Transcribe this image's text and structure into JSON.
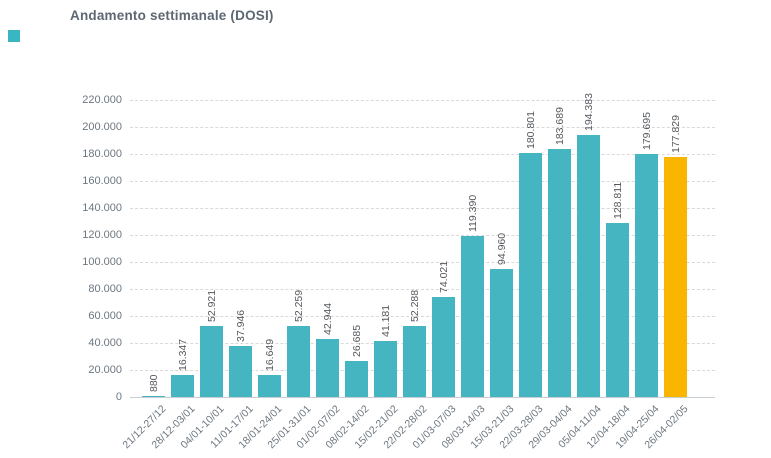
{
  "header": {
    "title": "Andamento settimanale (DOSI)",
    "accent_square_color": "#38b6c2"
  },
  "chart_data": {
    "type": "bar",
    "title": "Andamento settimanale (DOSI)",
    "categories": [
      "21/12-27/12",
      "28/12-03/01",
      "04/01-10/01",
      "11/01-17/01",
      "18/01-24/01",
      "25/01-31/01",
      "01/02-07/02",
      "08/02-14/02",
      "15/02-21/02",
      "22/02-28/02",
      "01/03-07/03",
      "08/03-14/03",
      "15/03-21/03",
      "22/03-28/03",
      "29/03-04/04",
      "05/04-11/04",
      "12/04-18/04",
      "19/04-25/04",
      "26/04-02/05"
    ],
    "values": [
      880,
      16347,
      52921,
      37946,
      16649,
      52259,
      42944,
      26685,
      41181,
      52288,
      74021,
      119390,
      94960,
      180801,
      183689,
      194383,
      128811,
      179695,
      177829
    ],
    "value_labels": [
      "880",
      "16.347",
      "52.921",
      "37.946",
      "16.649",
      "52.259",
      "42.944",
      "26.685",
      "41.181",
      "52.288",
      "74.021",
      "119.390",
      "94.960",
      "180.801",
      "183.689",
      "194.383",
      "128.811",
      "179.695",
      "177.829"
    ],
    "yticks": [
      "0",
      "20.000",
      "40.000",
      "60.000",
      "80.000",
      "100.000",
      "120.000",
      "140.000",
      "160.000",
      "180.000",
      "200.000",
      "220.000"
    ],
    "ylim": [
      0,
      220000
    ],
    "xlabel": "",
    "ylabel": "",
    "grid": "horizontal-dashed",
    "legend": "none",
    "bar_color": "#45b6c1",
    "highlight_index": 18,
    "highlight_color": "#f9b500"
  }
}
